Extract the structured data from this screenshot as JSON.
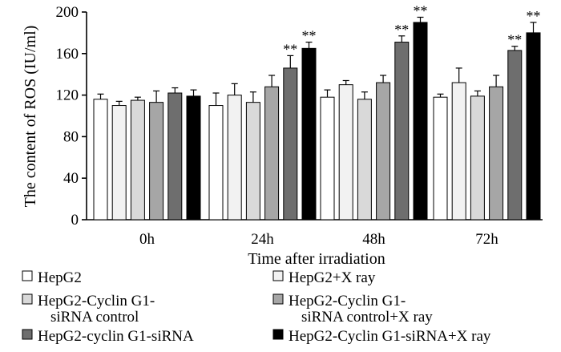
{
  "chart_data": {
    "type": "bar",
    "ylabel": "The content of ROS (IU/ml)",
    "xlabel": "Time after irradiation",
    "categories": [
      "0h",
      "24h",
      "48h",
      "72h"
    ],
    "ylim": [
      0,
      200
    ],
    "yticks": [
      0,
      40,
      80,
      120,
      160,
      200
    ],
    "yticks_labels": [
      "0",
      "40",
      "80",
      "120",
      "160",
      "200"
    ],
    "grid": false,
    "legend_position": "bottom",
    "significance_marker": "**",
    "series": [
      {
        "name": "HepG2",
        "legend_lines": [
          "HepG2"
        ],
        "color": "#ffffff",
        "values": [
          116,
          110,
          118,
          118
        ],
        "errors": [
          5,
          12,
          7,
          3
        ],
        "significant": [
          false,
          false,
          false,
          false
        ]
      },
      {
        "name": "HepG2+X ray",
        "legend_lines": [
          "HepG2+X ray"
        ],
        "color": "#f2f2f2",
        "values": [
          110,
          120,
          130,
          132
        ],
        "errors": [
          4,
          11,
          4,
          14
        ],
        "significant": [
          false,
          false,
          false,
          false
        ]
      },
      {
        "name": "HepG2-Cyclin G1-siRNA control",
        "legend_lines": [
          "HepG2-Cyclin G1-",
          "siRNA control"
        ],
        "color": "#d9d9d9",
        "values": [
          115,
          113,
          116,
          119
        ],
        "errors": [
          3,
          10,
          7,
          5
        ],
        "significant": [
          false,
          false,
          false,
          false
        ]
      },
      {
        "name": "HepG2-Cyclin G1-siRNA control+X ray",
        "legend_lines": [
          "HepG2-Cyclin G1-",
          "siRNA control+X ray"
        ],
        "color": "#a6a6a6",
        "values": [
          113,
          128,
          132,
          128
        ],
        "errors": [
          11,
          11,
          7,
          11
        ],
        "significant": [
          false,
          false,
          false,
          false
        ]
      },
      {
        "name": "HepG2-cyclin G1-siRNA",
        "legend_lines": [
          "HepG2-cyclin G1-siRNA"
        ],
        "color": "#6e6e6e",
        "values": [
          122,
          146,
          171,
          163
        ],
        "errors": [
          5,
          12,
          6,
          4
        ],
        "significant": [
          false,
          true,
          true,
          true
        ]
      },
      {
        "name": "HepG2-Cyclin G1-siRNA+X ray",
        "legend_lines": [
          "HepG2-Cyclin G1-siRNA+X ray"
        ],
        "color": "#000000",
        "values": [
          119,
          165,
          190,
          180
        ],
        "errors": [
          6,
          6,
          5,
          10
        ],
        "significant": [
          false,
          true,
          true,
          true
        ]
      }
    ]
  }
}
